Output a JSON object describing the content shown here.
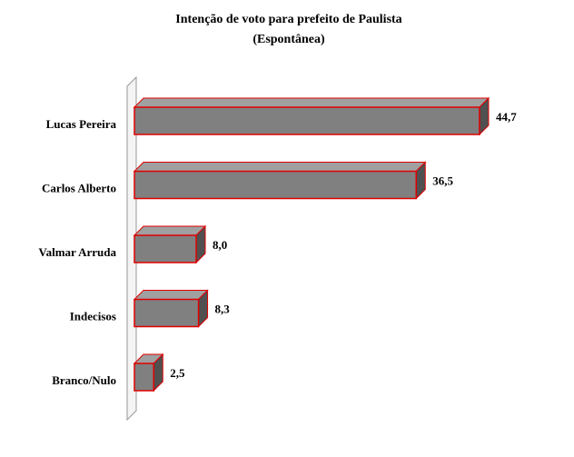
{
  "chart_data": {
    "type": "bar",
    "orientation": "horizontal",
    "title": "Intenção de voto para prefeito de Paulista",
    "subtitle": "(Espontânea)",
    "categories": [
      "Lucas Pereira",
      "Carlos Alberto",
      "Valmar Arruda",
      "Indecisos",
      "Branco/Nulo"
    ],
    "values": [
      44.7,
      36.5,
      8.0,
      8.3,
      2.5
    ],
    "value_labels": [
      "44,7",
      "36,5",
      "8,0",
      "8,3",
      "2,5"
    ],
    "color": "#808080",
    "edge_color": "#e00000"
  }
}
